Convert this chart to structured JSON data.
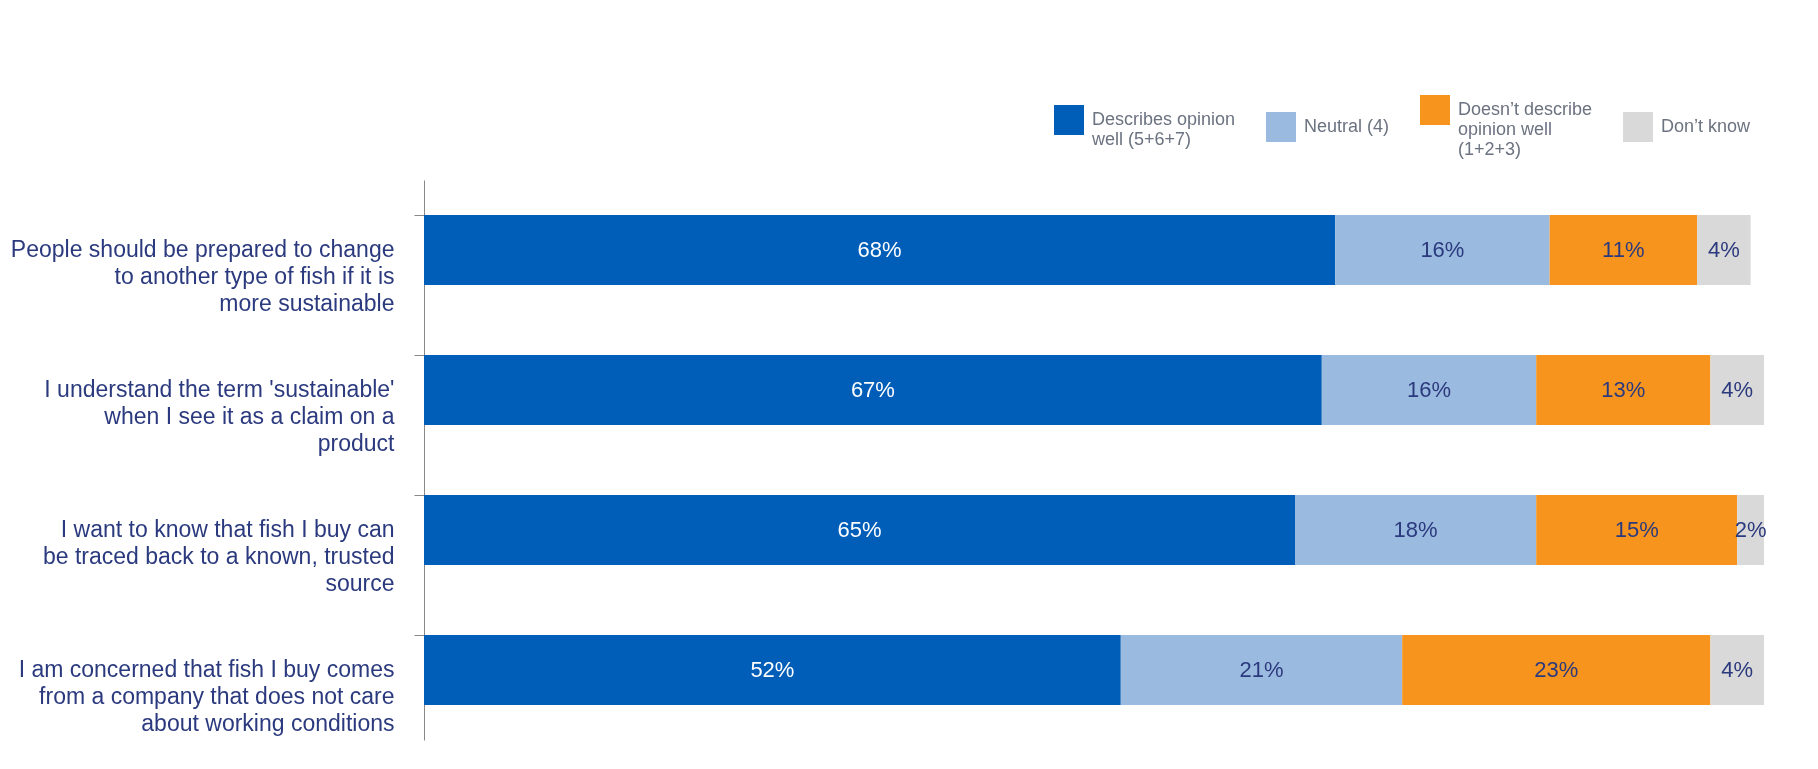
{
  "chart_data": {
    "type": "bar",
    "orientation": "horizontal",
    "stacked": true,
    "data_labels": true,
    "legend": "top right",
    "grid": false,
    "categories": [
      "People should be prepared to change to another type of fish if it is more sustainable",
      "I understand the term 'sustainable' when I see it as a claim on a product",
      "I want to know that fish I buy can be traced back to a known, trusted source",
      "I am concerned that fish I buy comes from a company that does not care about working conditions"
    ],
    "series": [
      {
        "name": "Describes opinion well (5+6+7)",
        "color": "#005eb8",
        "values": [
          68,
          67,
          65,
          52
        ],
        "value_labels": [
          "68%",
          "67%",
          "65%",
          "52%"
        ]
      },
      {
        "name": "Neutral (4)",
        "color": "#9bbadf",
        "values": [
          16,
          16,
          18,
          21
        ],
        "value_labels": [
          "16%",
          "16%",
          "18%",
          "21%"
        ]
      },
      {
        "name": "Doesn’t describe opinion well (1+2+3)",
        "color": "#f7941d",
        "values": [
          11,
          13,
          15,
          23
        ],
        "value_labels": [
          "11%",
          "13%",
          "15%",
          "23%"
        ]
      },
      {
        "name": "Don’t know",
        "color": "#d9d9d9",
        "values": [
          4,
          4,
          2,
          4
        ],
        "value_labels": [
          "4%",
          "4%",
          "2%",
          "4%"
        ]
      }
    ]
  }
}
